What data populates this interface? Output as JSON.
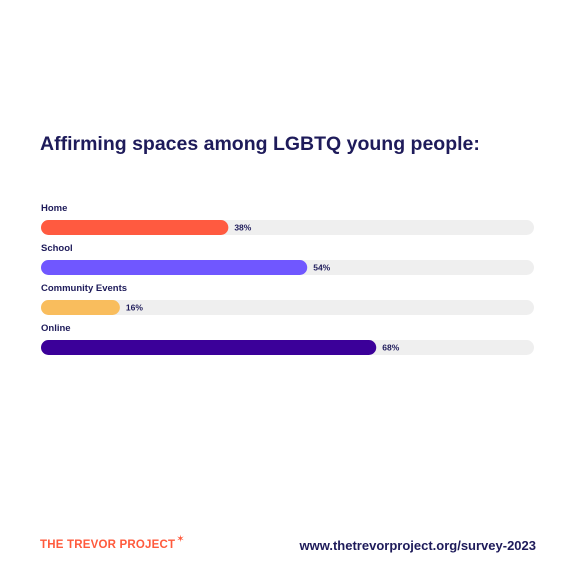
{
  "brand": {
    "name": "THE TREVOR PROJECT",
    "star_icon": "star-icon",
    "color": "#ff5a3c"
  },
  "footer": {
    "url": "www.thetrevorproject.org/survey-2023"
  },
  "colors": {
    "track": "#efefef",
    "text": "#1e1b5a"
  },
  "chart_data": {
    "type": "bar",
    "orientation": "horizontal",
    "title": "Affirming spaces among LGBTQ young people:",
    "categories": [
      "Home",
      "School",
      "Community Events",
      "Online"
    ],
    "values": [
      38,
      54,
      16,
      68
    ],
    "value_labels": [
      "38%",
      "54%",
      "16%",
      "68%"
    ],
    "bar_colors": [
      "#ff5a40",
      "#7057ff",
      "#f9bd5d",
      "#3b0099"
    ],
    "xlim": [
      0,
      100
    ],
    "grid": false,
    "legend": "none"
  }
}
